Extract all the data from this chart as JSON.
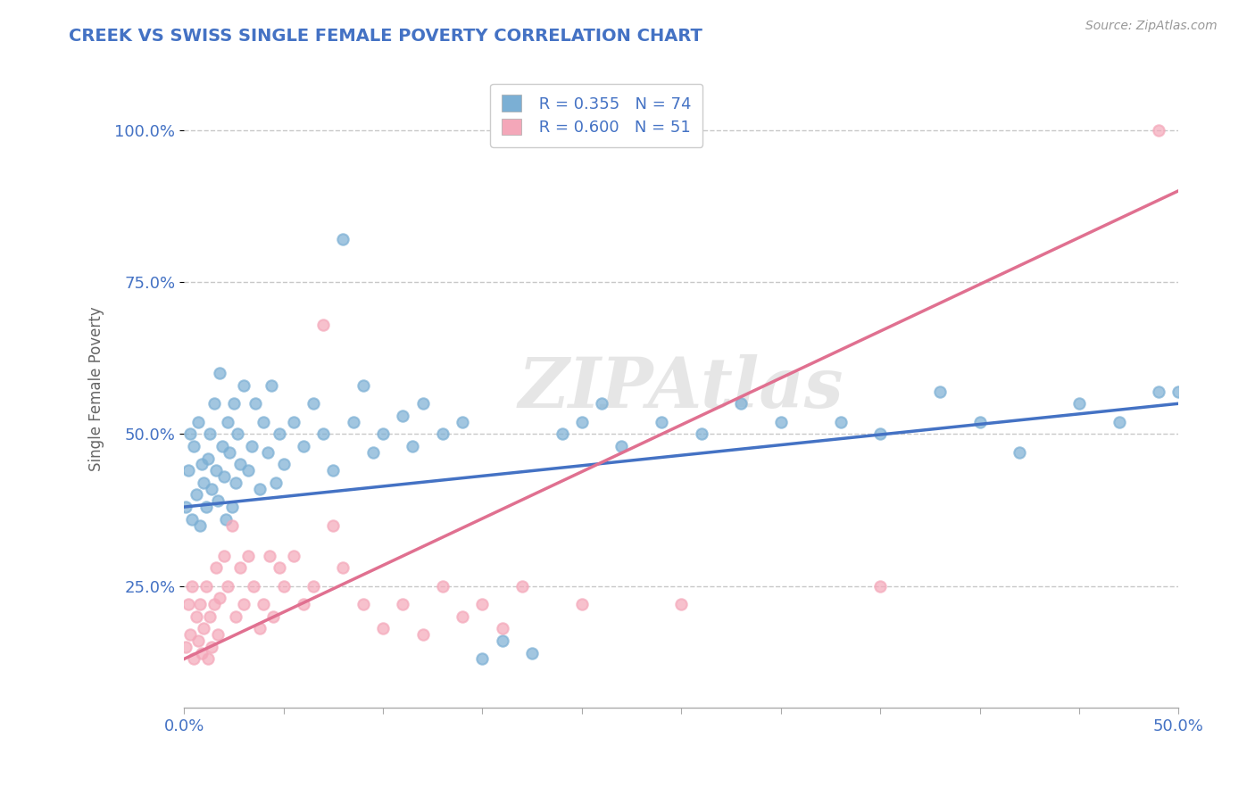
{
  "title": "CREEK VS SWISS SINGLE FEMALE POVERTY CORRELATION CHART",
  "source_text": "Source: ZipAtlas.com",
  "ylabel": "Single Female Poverty",
  "xlim": [
    0.0,
    0.5
  ],
  "ylim": [
    0.05,
    1.1
  ],
  "ytick_positions": [
    0.25,
    0.5,
    0.75,
    1.0
  ],
  "ytick_labels": [
    "25.0%",
    "50.0%",
    "75.0%",
    "100.0%"
  ],
  "creek_color": "#7BAFD4",
  "swiss_color": "#F4A7B9",
  "creek_line_color": "#4472C4",
  "swiss_line_color": "#E07090",
  "creek_R": 0.355,
  "creek_N": 74,
  "swiss_R": 0.6,
  "swiss_N": 51,
  "background_color": "#FFFFFF",
  "grid_color": "#BBBBBB",
  "title_color": "#4472C4",
  "watermark": "ZIPAtlas",
  "creek_line_y0": 0.38,
  "creek_line_y1": 0.55,
  "swiss_line_y0": 0.13,
  "swiss_line_y1": 0.9,
  "creek_points": [
    [
      0.001,
      0.38
    ],
    [
      0.002,
      0.44
    ],
    [
      0.003,
      0.5
    ],
    [
      0.004,
      0.36
    ],
    [
      0.005,
      0.48
    ],
    [
      0.006,
      0.4
    ],
    [
      0.007,
      0.52
    ],
    [
      0.008,
      0.35
    ],
    [
      0.009,
      0.45
    ],
    [
      0.01,
      0.42
    ],
    [
      0.011,
      0.38
    ],
    [
      0.012,
      0.46
    ],
    [
      0.013,
      0.5
    ],
    [
      0.014,
      0.41
    ],
    [
      0.015,
      0.55
    ],
    [
      0.016,
      0.44
    ],
    [
      0.017,
      0.39
    ],
    [
      0.018,
      0.6
    ],
    [
      0.019,
      0.48
    ],
    [
      0.02,
      0.43
    ],
    [
      0.021,
      0.36
    ],
    [
      0.022,
      0.52
    ],
    [
      0.023,
      0.47
    ],
    [
      0.024,
      0.38
    ],
    [
      0.025,
      0.55
    ],
    [
      0.026,
      0.42
    ],
    [
      0.027,
      0.5
    ],
    [
      0.028,
      0.45
    ],
    [
      0.03,
      0.58
    ],
    [
      0.032,
      0.44
    ],
    [
      0.034,
      0.48
    ],
    [
      0.036,
      0.55
    ],
    [
      0.038,
      0.41
    ],
    [
      0.04,
      0.52
    ],
    [
      0.042,
      0.47
    ],
    [
      0.044,
      0.58
    ],
    [
      0.046,
      0.42
    ],
    [
      0.048,
      0.5
    ],
    [
      0.05,
      0.45
    ],
    [
      0.055,
      0.52
    ],
    [
      0.06,
      0.48
    ],
    [
      0.065,
      0.55
    ],
    [
      0.07,
      0.5
    ],
    [
      0.075,
      0.44
    ],
    [
      0.08,
      0.82
    ],
    [
      0.085,
      0.52
    ],
    [
      0.09,
      0.58
    ],
    [
      0.095,
      0.47
    ],
    [
      0.1,
      0.5
    ],
    [
      0.11,
      0.53
    ],
    [
      0.115,
      0.48
    ],
    [
      0.12,
      0.55
    ],
    [
      0.13,
      0.5
    ],
    [
      0.14,
      0.52
    ],
    [
      0.15,
      0.13
    ],
    [
      0.16,
      0.16
    ],
    [
      0.175,
      0.14
    ],
    [
      0.19,
      0.5
    ],
    [
      0.2,
      0.52
    ],
    [
      0.21,
      0.55
    ],
    [
      0.22,
      0.48
    ],
    [
      0.24,
      0.52
    ],
    [
      0.26,
      0.5
    ],
    [
      0.28,
      0.55
    ],
    [
      0.3,
      0.52
    ],
    [
      0.33,
      0.52
    ],
    [
      0.35,
      0.5
    ],
    [
      0.38,
      0.57
    ],
    [
      0.4,
      0.52
    ],
    [
      0.42,
      0.47
    ],
    [
      0.45,
      0.55
    ],
    [
      0.47,
      0.52
    ],
    [
      0.49,
      0.57
    ],
    [
      0.5,
      0.57
    ]
  ],
  "swiss_points": [
    [
      0.001,
      0.15
    ],
    [
      0.002,
      0.22
    ],
    [
      0.003,
      0.17
    ],
    [
      0.004,
      0.25
    ],
    [
      0.005,
      0.13
    ],
    [
      0.006,
      0.2
    ],
    [
      0.007,
      0.16
    ],
    [
      0.008,
      0.22
    ],
    [
      0.009,
      0.14
    ],
    [
      0.01,
      0.18
    ],
    [
      0.011,
      0.25
    ],
    [
      0.012,
      0.13
    ],
    [
      0.013,
      0.2
    ],
    [
      0.014,
      0.15
    ],
    [
      0.015,
      0.22
    ],
    [
      0.016,
      0.28
    ],
    [
      0.017,
      0.17
    ],
    [
      0.018,
      0.23
    ],
    [
      0.02,
      0.3
    ],
    [
      0.022,
      0.25
    ],
    [
      0.024,
      0.35
    ],
    [
      0.026,
      0.2
    ],
    [
      0.028,
      0.28
    ],
    [
      0.03,
      0.22
    ],
    [
      0.032,
      0.3
    ],
    [
      0.035,
      0.25
    ],
    [
      0.038,
      0.18
    ],
    [
      0.04,
      0.22
    ],
    [
      0.043,
      0.3
    ],
    [
      0.045,
      0.2
    ],
    [
      0.048,
      0.28
    ],
    [
      0.05,
      0.25
    ],
    [
      0.055,
      0.3
    ],
    [
      0.06,
      0.22
    ],
    [
      0.065,
      0.25
    ],
    [
      0.07,
      0.68
    ],
    [
      0.075,
      0.35
    ],
    [
      0.08,
      0.28
    ],
    [
      0.09,
      0.22
    ],
    [
      0.1,
      0.18
    ],
    [
      0.11,
      0.22
    ],
    [
      0.12,
      0.17
    ],
    [
      0.13,
      0.25
    ],
    [
      0.14,
      0.2
    ],
    [
      0.15,
      0.22
    ],
    [
      0.16,
      0.18
    ],
    [
      0.17,
      0.25
    ],
    [
      0.2,
      0.22
    ],
    [
      0.25,
      0.22
    ],
    [
      0.35,
      0.25
    ],
    [
      0.49,
      1.0
    ]
  ]
}
